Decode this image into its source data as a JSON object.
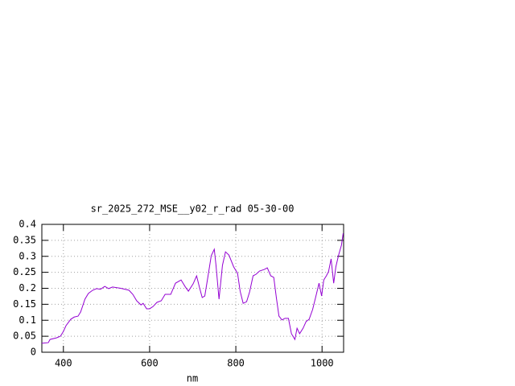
{
  "chart_data": {
    "type": "line",
    "title": "sr_2025_272_MSE__y02_r_rad 05-30-00",
    "xlabel": "nm",
    "xlim": [
      350,
      1050
    ],
    "xticks": [
      400,
      600,
      800,
      1000
    ],
    "ylim": [
      0,
      0.4
    ],
    "yticks": [
      0,
      0.05,
      0.1,
      0.15,
      0.2,
      0.25,
      0.3,
      0.35,
      0.4
    ],
    "grid": true,
    "series": [
      {
        "color": "#9400d3",
        "x": [
          350,
          365,
          369,
          384,
          393,
          400,
          406,
          417,
          425,
          434,
          440,
          445,
          450,
          458,
          468,
          477,
          486,
          496,
          505,
          514,
          533,
          552,
          561,
          570,
          580,
          585,
          593,
          600,
          608,
          617,
          627,
          636,
          649,
          660,
          673,
          683,
          690,
          701,
          709,
          716,
          722,
          728,
          735,
          743,
          750,
          754,
          761,
          769,
          776,
          784,
          795,
          804,
          810,
          817,
          825,
          832,
          840,
          847,
          855,
          866,
          873,
          881,
          888,
          894,
          900,
          907,
          914,
          922,
          929,
          937,
          942,
          948,
          956,
          963,
          970,
          978,
          985,
          993,
          999,
          1004,
          1010,
          1015,
          1021,
          1027,
          1032,
          1038,
          1045,
          1049
        ],
        "values": [
          0.028,
          0.03,
          0.04,
          0.045,
          0.05,
          0.065,
          0.083,
          0.103,
          0.11,
          0.113,
          0.126,
          0.146,
          0.166,
          0.184,
          0.194,
          0.199,
          0.197,
          0.206,
          0.199,
          0.204,
          0.2,
          0.194,
          0.181,
          0.161,
          0.148,
          0.153,
          0.136,
          0.136,
          0.143,
          0.156,
          0.161,
          0.181,
          0.181,
          0.216,
          0.226,
          0.204,
          0.191,
          0.214,
          0.239,
          0.201,
          0.171,
          0.176,
          0.234,
          0.302,
          0.322,
          0.272,
          0.166,
          0.272,
          0.314,
          0.304,
          0.267,
          0.247,
          0.191,
          0.153,
          0.158,
          0.189,
          0.239,
          0.244,
          0.254,
          0.259,
          0.264,
          0.239,
          0.234,
          0.171,
          0.113,
          0.101,
          0.106,
          0.106,
          0.058,
          0.04,
          0.075,
          0.058,
          0.075,
          0.096,
          0.103,
          0.133,
          0.171,
          0.216,
          0.176,
          0.226,
          0.239,
          0.252,
          0.292,
          0.216,
          0.267,
          0.302,
          0.335,
          0.372
        ]
      }
    ]
  }
}
